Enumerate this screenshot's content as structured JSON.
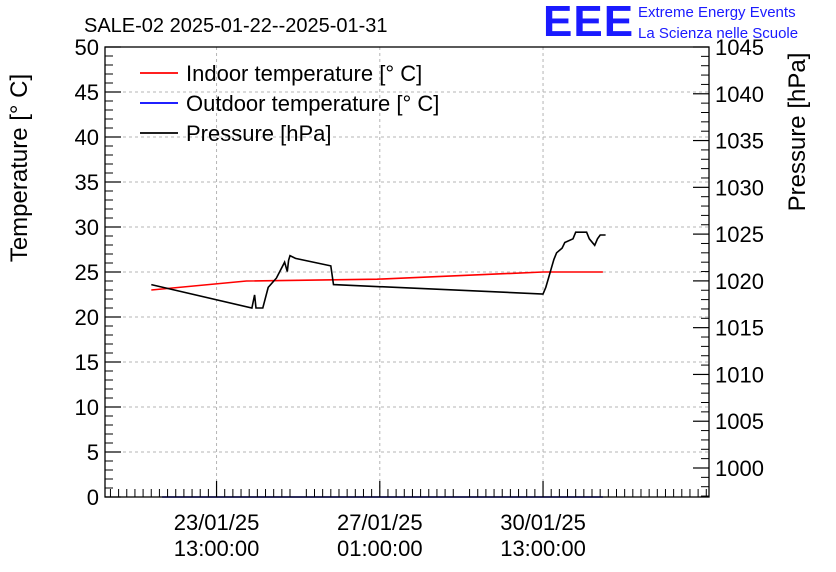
{
  "logo": {
    "text": "EEE",
    "line1": "Extreme Energy Events",
    "line2": "La Scienza nelle Scuole"
  },
  "chart_data": {
    "type": "line",
    "title": "SALE-02 2025-01-22--2025-01-31",
    "ylabel_left": "Temperature [° C]",
    "ylabel_right": "Pressure [hPa]",
    "y_left_range": [
      0,
      50
    ],
    "y_left_ticks": [
      "0",
      "5",
      "10",
      "15",
      "20",
      "25",
      "30",
      "35",
      "40",
      "45",
      "50"
    ],
    "y_right_range": [
      996.9,
      1045
    ],
    "y_right_ticks": [
      "1000",
      "1005",
      "1010",
      "1015",
      "1020",
      "1025",
      "1030",
      "1035",
      "1040",
      "1045"
    ],
    "x_range_hours": [
      0,
      222
    ],
    "x_ticks": [
      {
        "hour": 41,
        "line1": "23/01/25",
        "line2": "13:00:00"
      },
      {
        "hour": 101,
        "line1": "27/01/25",
        "line2": "01:00:00"
      },
      {
        "hour": 161,
        "line1": "30/01/25",
        "line2": "13:00:00"
      }
    ],
    "grid": true,
    "legend_position": "top-left",
    "series": [
      {
        "name": "Indoor temperature [° C]",
        "axis": "left",
        "color": "#ff0000",
        "points": [
          [
            17,
            23.0
          ],
          [
            52,
            24.0
          ],
          [
            100,
            24.2
          ],
          [
            161,
            25.0
          ],
          [
            183,
            25.0
          ]
        ]
      },
      {
        "name": "Outdoor temperature [° C]",
        "axis": "left",
        "color": "#0000ff",
        "points": [
          [
            21,
            0
          ],
          [
            183,
            0
          ]
        ]
      },
      {
        "name": "Pressure [hPa]",
        "axis": "right",
        "color": "#000000",
        "points": [
          [
            17,
            1019.6
          ],
          [
            54,
            1017.1
          ],
          [
            55,
            1018.5
          ],
          [
            55.5,
            1017.1
          ],
          [
            58,
            1017.1
          ],
          [
            60,
            1019.3
          ],
          [
            63,
            1020.3
          ],
          [
            66,
            1022.0
          ],
          [
            67,
            1021.0
          ],
          [
            67.5,
            1022.2
          ],
          [
            68,
            1022.7
          ],
          [
            70,
            1022.4
          ],
          [
            83,
            1021.6
          ],
          [
            84,
            1019.6
          ],
          [
            161,
            1018.6
          ],
          [
            162,
            1019.3
          ],
          [
            163,
            1020.3
          ],
          [
            164,
            1021.3
          ],
          [
            165,
            1022.3
          ],
          [
            166,
            1023.0
          ],
          [
            168,
            1023.5
          ],
          [
            169,
            1024.1
          ],
          [
            172,
            1024.5
          ],
          [
            173,
            1025.2
          ],
          [
            177,
            1025.2
          ],
          [
            178,
            1024.5
          ],
          [
            180,
            1023.8
          ],
          [
            181,
            1024.5
          ],
          [
            182,
            1024.9
          ],
          [
            184,
            1024.9
          ]
        ]
      }
    ]
  }
}
